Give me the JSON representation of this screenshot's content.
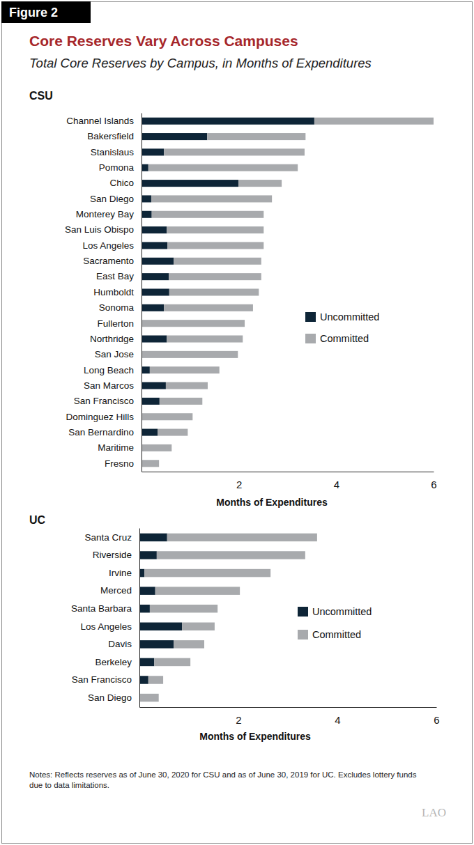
{
  "label": "Figure 2",
  "title": "Core Reserves Vary Across Campuses",
  "subtitle": "Total Core Reserves by Campus, in Months of Expenditures",
  "notes": [
    "Notes: Reflects reserves as of June 30, 2020 for CSU and as of June 30, 2019 for UC. Excludes lottery funds",
    "due to data limitations."
  ],
  "logo": "LAO",
  "chart_data": [
    {
      "type": "bar",
      "orientation": "horizontal",
      "stacked": true,
      "title": "CSU",
      "x_label": "Months of Expenditures",
      "categories": [
        "Channel Islands",
        "Bakersfield",
        "Stanislaus",
        "Pomona",
        "Chico",
        "San Diego",
        "Monterey Bay",
        "San Luis Obispo",
        "Los Angeles",
        "Sacramento",
        "East Bay",
        "Humboldt",
        "Sonoma",
        "Fullerton",
        "Northridge",
        "San Jose",
        "Long Beach",
        "San Marcos",
        "San Francisco",
        "Dominguez Hills",
        "San Bernardino",
        "Maritime",
        "Fresno"
      ],
      "series": [
        {
          "name": "Uncommitted",
          "color": "#0e2537",
          "values": [
            3.55,
            1.35,
            0.46,
            0.14,
            1.99,
            0.2,
            0.21,
            0.52,
            0.53,
            0.66,
            0.56,
            0.57,
            0.46,
            0,
            0.52,
            0,
            0.17,
            0.5,
            0.37,
            0,
            0.33,
            0,
            0
          ]
        },
        {
          "name": "Committed",
          "color": "#a8aaad",
          "values": [
            2.45,
            2.02,
            2.89,
            3.07,
            0.89,
            2.48,
            2.3,
            1.99,
            1.98,
            1.8,
            1.9,
            1.84,
            1.83,
            2.12,
            1.56,
            1.98,
            1.43,
            0.86,
            0.88,
            1.05,
            0.62,
            0.62,
            0.36
          ]
        }
      ],
      "xlim": [
        0,
        6
      ],
      "xticks": [
        2,
        4,
        6
      ],
      "legend": "right"
    },
    {
      "type": "bar",
      "orientation": "horizontal",
      "stacked": true,
      "title": "UC",
      "x_label": "Months of Expenditures",
      "categories": [
        "Santa Cruz",
        "Riverside",
        "Irvine",
        "Merced",
        "Santa Barbara",
        "Los Angeles",
        "Davis",
        "Berkeley",
        "San Francisco",
        "San Diego"
      ],
      "series": [
        {
          "name": "Uncommitted",
          "color": "#0e2537",
          "values": [
            0.56,
            0.35,
            0.1,
            0.32,
            0.21,
            0.86,
            0.69,
            0.3,
            0.18,
            0
          ]
        },
        {
          "name": "Committed",
          "color": "#a8aaad",
          "values": [
            3.03,
            3.0,
            2.55,
            1.71,
            1.37,
            0.66,
            0.62,
            0.73,
            0.3,
            0.39
          ]
        }
      ],
      "xlim": [
        0,
        6
      ],
      "xticks": [
        2,
        4,
        6
      ],
      "legend": "right"
    }
  ]
}
